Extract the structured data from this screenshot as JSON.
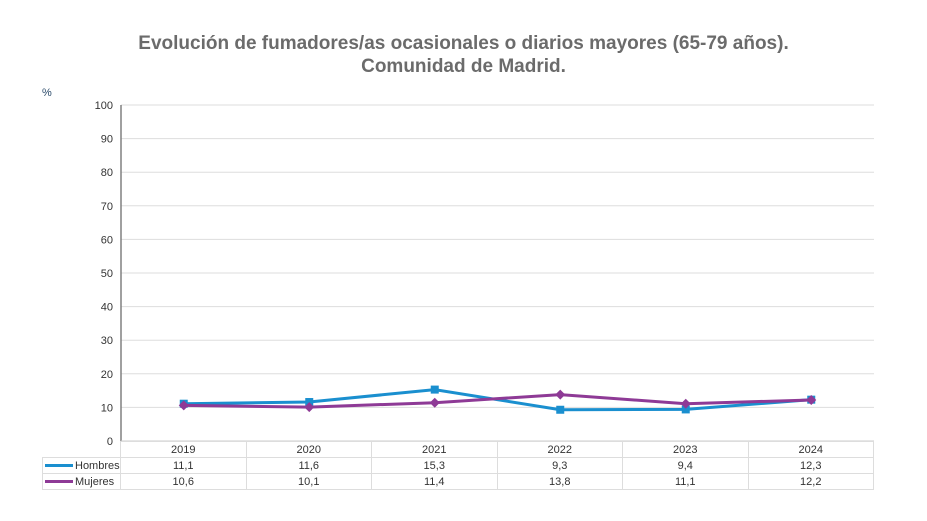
{
  "chart_data": {
    "type": "line",
    "title": [
      "Evolución de fumadores/as ocasionales o diarios mayores (65-79 años).",
      "Comunidad de Madrid."
    ],
    "ylabel": "%",
    "xlabel": "",
    "ylim": [
      0,
      100
    ],
    "yticks": [
      "0",
      "10",
      "20",
      "30",
      "40",
      "50",
      "60",
      "70",
      "80",
      "90",
      "100"
    ],
    "categories": [
      "2019",
      "2020",
      "2021",
      "2022",
      "2023",
      "2024"
    ],
    "grid": true,
    "legend": "bottom-table",
    "series": [
      {
        "name": "Hombres",
        "values": [
          11.1,
          11.6,
          15.3,
          9.3,
          9.4,
          12.3
        ],
        "labels": [
          "11,1",
          "11,6",
          "15,3",
          "9,3",
          "9,4",
          "12,3"
        ],
        "color": "#1a8fcf",
        "marker": "square"
      },
      {
        "name": "Mujeres",
        "values": [
          10.6,
          10.1,
          11.4,
          13.8,
          11.1,
          12.2
        ],
        "labels": [
          "10,6",
          "10,1",
          "11,4",
          "13,8",
          "11,1",
          "12,2"
        ],
        "color": "#8e3a96",
        "marker": "diamond"
      }
    ]
  }
}
